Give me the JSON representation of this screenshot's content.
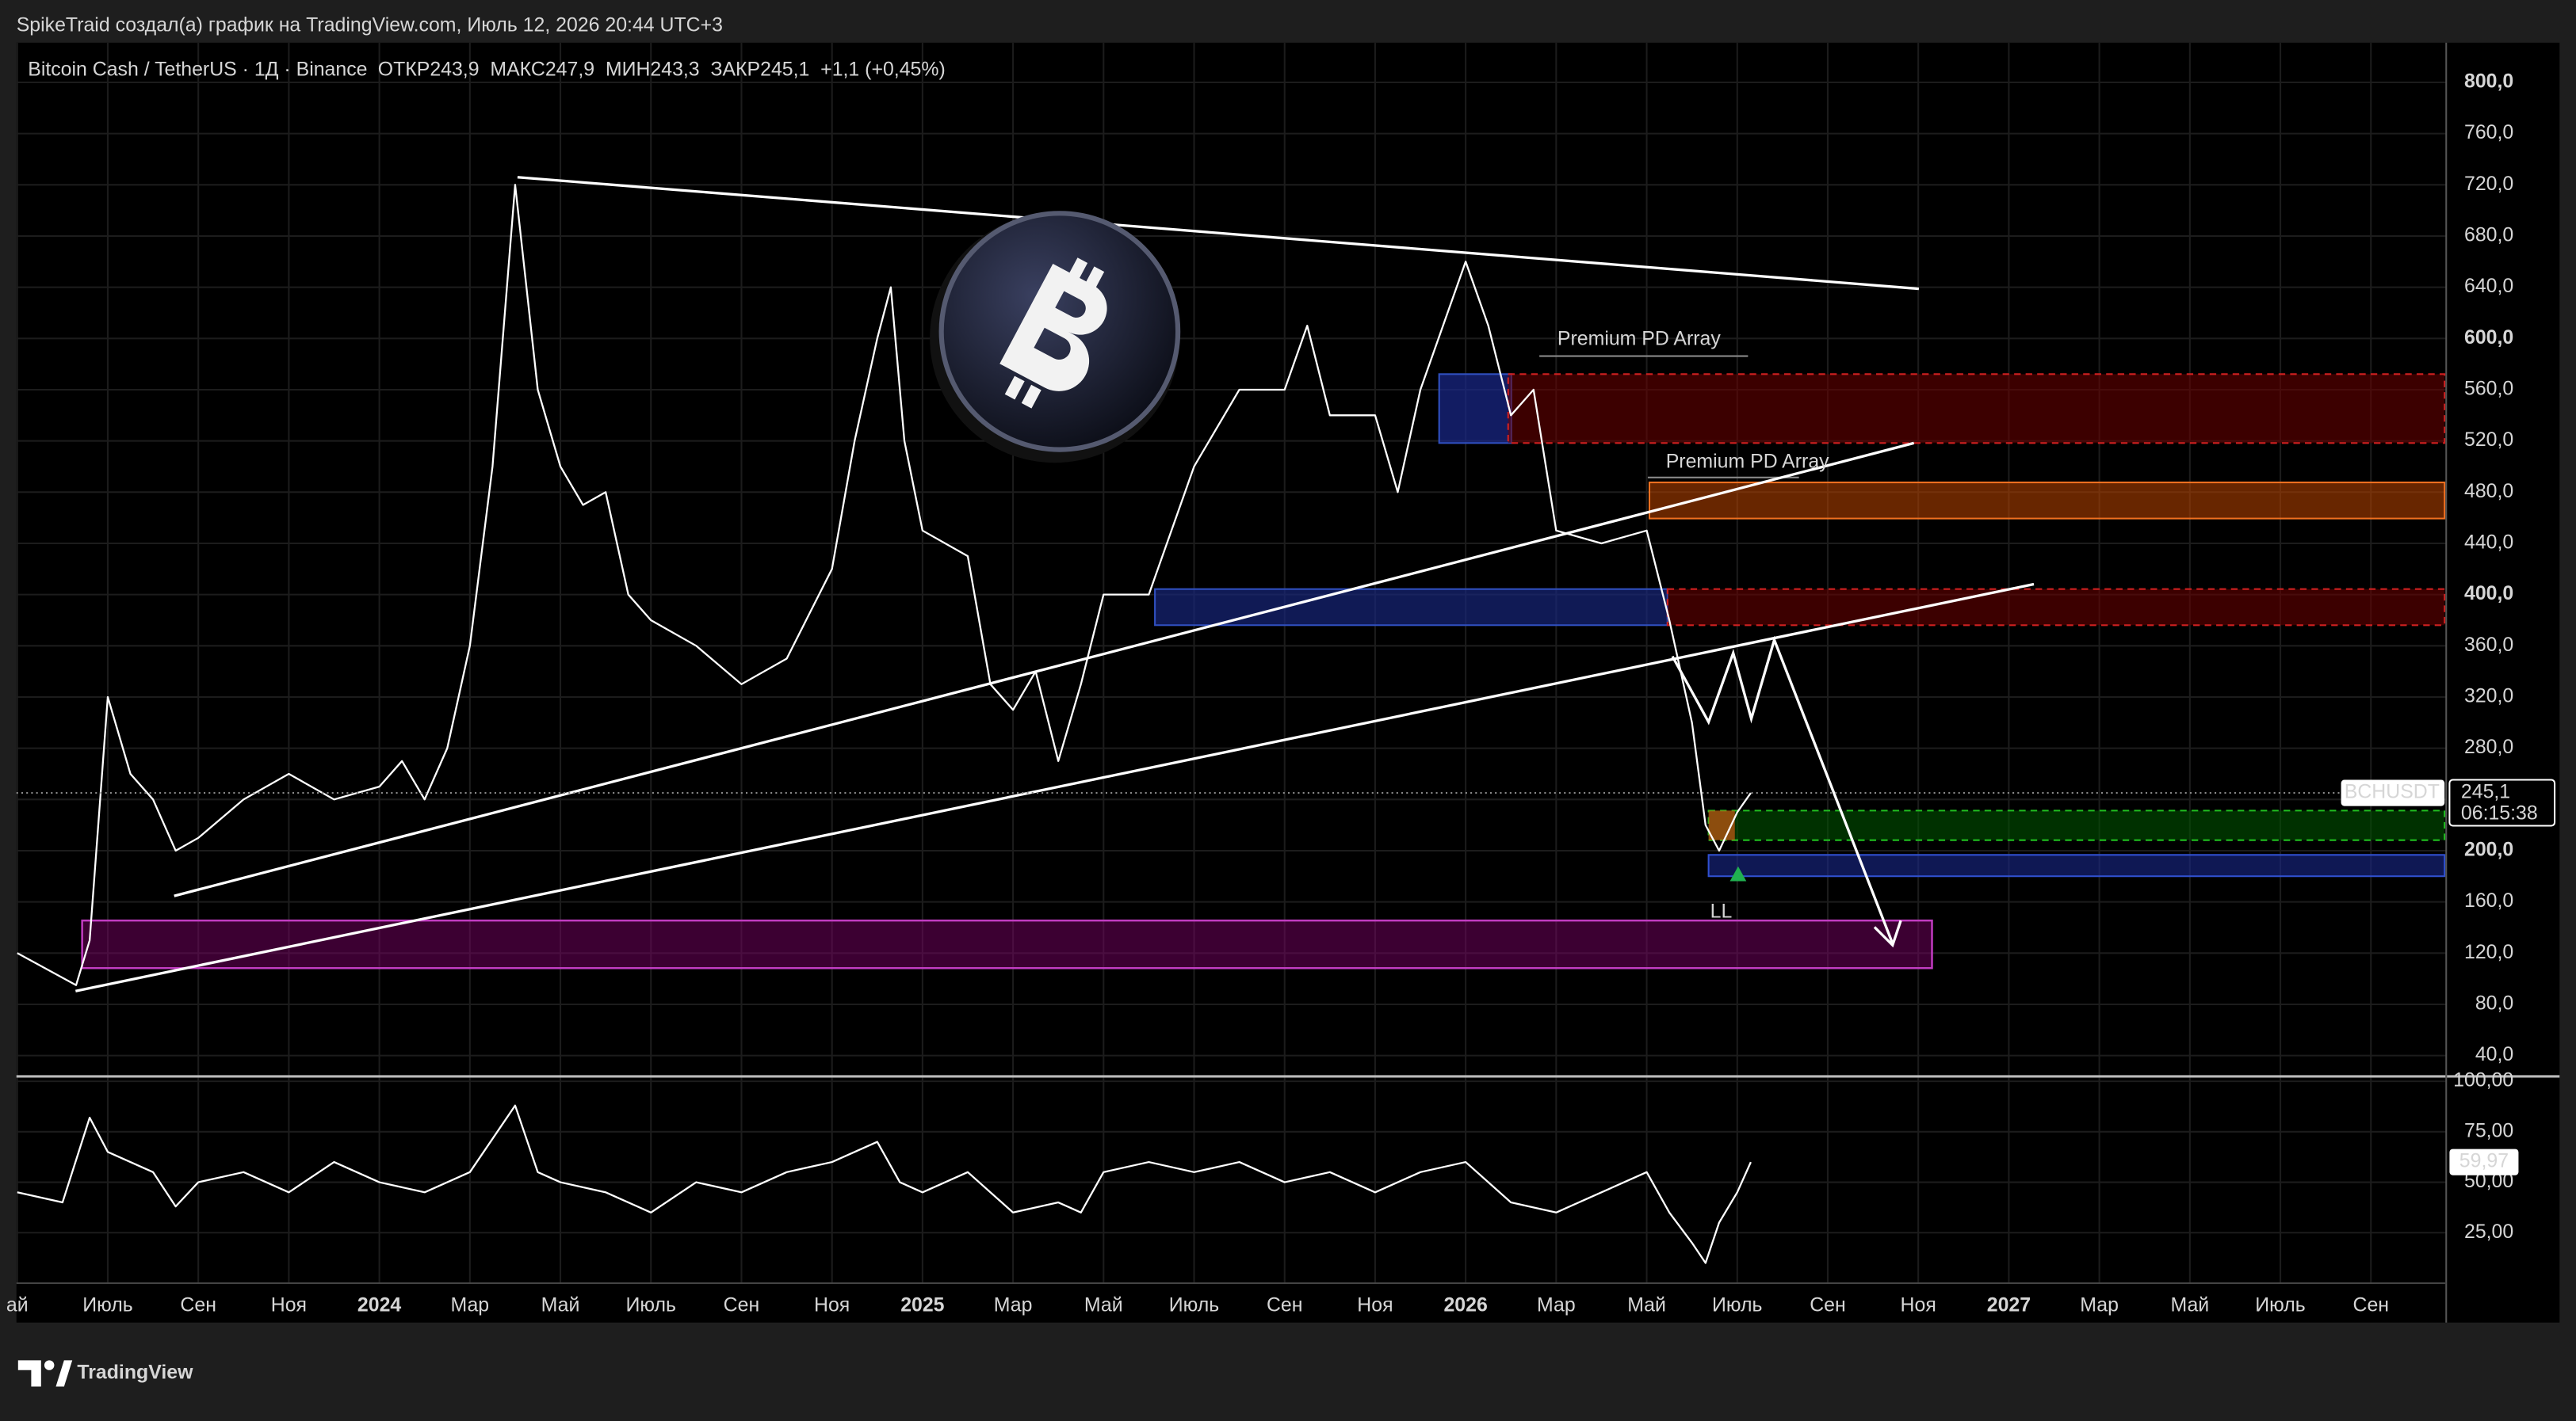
{
  "attribution": "SpikeTraid создал(а) график на TradingView.com, Июль 12, 2026 20:44 UTC+3",
  "brand": "TradingView",
  "chart_data": [
    {
      "type": "line",
      "title": "Bitcoin Cash / TetherUS · 1Д · Binance",
      "subtitle": "ОТКР243,9  МАКС247,9  МИН243,3  ЗАКР245,1  +1,1 (+0,45%)",
      "x": [
        0,
        1.3,
        1.6,
        2,
        2.5,
        3,
        3.5,
        4,
        5,
        6,
        7,
        8,
        8.5,
        9,
        9.5,
        10,
        10.5,
        11,
        11.5,
        12,
        12.5,
        13,
        13.5,
        14,
        15,
        16,
        17,
        18,
        18.5,
        19,
        19.3,
        19.6,
        20,
        21,
        21.5,
        22,
        22.5,
        23,
        23.5,
        24,
        25,
        26,
        27,
        28,
        28.5,
        29,
        30,
        30.5,
        31,
        32,
        32.5,
        33,
        33.5,
        34,
        35,
        36,
        36.5,
        37,
        37.3,
        37.6,
        38,
        38.3
      ],
      "series": [
        {
          "name": "BCHUSDT",
          "color": "#ffffff",
          "values": [
            120,
            95,
            130,
            320,
            260,
            240,
            200,
            210,
            240,
            260,
            240,
            250,
            270,
            240,
            280,
            360,
            500,
            720,
            560,
            500,
            470,
            480,
            400,
            380,
            360,
            330,
            350,
            420,
            520,
            600,
            640,
            520,
            450,
            430,
            330,
            310,
            340,
            270,
            330,
            400,
            400,
            500,
            560,
            560,
            610,
            540,
            540,
            480,
            560,
            660,
            610,
            540,
            560,
            450,
            440,
            450,
            380,
            300,
            220,
            200,
            230,
            245.1
          ],
          "value_labels": [
            null,
            null,
            null,
            null,
            null,
            null,
            null,
            null,
            null,
            null,
            null,
            null,
            null,
            null,
            null,
            null,
            null,
            null,
            null,
            null,
            null,
            null,
            null,
            null,
            null,
            null,
            null,
            null,
            null,
            null,
            null,
            null,
            null,
            null,
            null,
            null,
            null,
            null,
            null,
            null,
            null,
            null,
            null,
            null,
            null,
            null,
            null,
            null,
            null,
            null,
            null,
            null,
            null,
            null,
            null,
            null,
            null,
            null,
            null,
            null,
            null,
            "245,1"
          ]
        }
      ],
      "countdown": "06:15:38",
      "annotations": [
        "Premium PD Array",
        "Premium PD Array",
        "LL"
      ],
      "xlim": [
        0,
        53.7
      ],
      "xticks": [
        {
          "value": 0,
          "label": "ай"
        },
        {
          "value": 2,
          "label": "Июль"
        },
        {
          "value": 4,
          "label": "Сен"
        },
        {
          "value": 6,
          "label": "Ноя"
        },
        {
          "value": 8,
          "label": "2024"
        },
        {
          "value": 10,
          "label": "Мар"
        },
        {
          "value": 12,
          "label": "Май"
        },
        {
          "value": 14,
          "label": "Июль"
        },
        {
          "value": 16,
          "label": "Сен"
        },
        {
          "value": 18,
          "label": "Ноя"
        },
        {
          "value": 20,
          "label": "2025"
        },
        {
          "value": 22,
          "label": "Мар"
        },
        {
          "value": 24,
          "label": "Май"
        },
        {
          "value": 26,
          "label": "Июль"
        },
        {
          "value": 28,
          "label": "Сен"
        },
        {
          "value": 30,
          "label": "Ноя"
        },
        {
          "value": 32,
          "label": "2026"
        },
        {
          "value": 34,
          "label": "Мар"
        },
        {
          "value": 36,
          "label": "Май"
        },
        {
          "value": 38,
          "label": "Июль"
        },
        {
          "value": 40,
          "label": "Сен"
        },
        {
          "value": 42,
          "label": "Ноя"
        },
        {
          "value": 44,
          "label": "2027"
        },
        {
          "value": 46,
          "label": "Мар"
        },
        {
          "value": 48,
          "label": "Май"
        },
        {
          "value": 50,
          "label": "Июль"
        },
        {
          "value": 52,
          "label": "Сен"
        }
      ],
      "ylim": [
        25,
        831
      ],
      "yticks": [
        {
          "value": 40,
          "label": "40,0"
        },
        {
          "value": 80,
          "label": "80,0"
        },
        {
          "value": 120,
          "label": "120,0"
        },
        {
          "value": 160,
          "label": "160,0"
        },
        {
          "value": 200,
          "label": "200,0"
        },
        {
          "value": 240,
          "label": "240,0"
        },
        {
          "value": 280,
          "label": "280,0"
        },
        {
          "value": 320,
          "label": "320,0"
        },
        {
          "value": 360,
          "label": "360,0"
        },
        {
          "value": 400,
          "label": "400,0"
        },
        {
          "value": 440,
          "label": "440,0"
        },
        {
          "value": 480,
          "label": "480,0"
        },
        {
          "value": 520,
          "label": "520,0"
        },
        {
          "value": 560,
          "label": "560,0"
        },
        {
          "value": 600,
          "label": "600,0"
        },
        {
          "value": 640,
          "label": "640,0"
        },
        {
          "value": 680,
          "label": "680,0"
        },
        {
          "value": 720,
          "label": "720,0"
        },
        {
          "value": 760,
          "label": "760,0"
        },
        {
          "value": 800,
          "label": "800,0"
        }
      ],
      "grid": true
    },
    {
      "type": "line",
      "x": [
        0,
        1,
        1.6,
        2,
        3,
        3.5,
        4,
        5,
        6,
        7,
        8,
        9,
        10,
        11,
        11.5,
        12,
        13,
        14,
        15,
        16,
        17,
        18,
        19,
        19.5,
        20,
        21,
        22,
        23,
        23.5,
        24,
        25,
        26,
        27,
        28,
        29,
        30,
        31,
        32,
        33,
        34,
        35,
        36,
        36.5,
        37,
        37.3,
        37.6,
        38,
        38.3
      ],
      "series": [
        {
          "color": "#ffffff",
          "values": [
            45,
            40,
            82,
            65,
            55,
            38,
            50,
            55,
            45,
            60,
            50,
            45,
            55,
            88,
            55,
            50,
            45,
            35,
            50,
            45,
            55,
            60,
            70,
            50,
            45,
            55,
            35,
            40,
            35,
            55,
            60,
            55,
            60,
            50,
            55,
            45,
            55,
            60,
            40,
            35,
            45,
            55,
            35,
            20,
            10,
            30,
            45,
            59.97
          ],
          "value_labels": [
            null,
            null,
            null,
            null,
            null,
            null,
            null,
            null,
            null,
            null,
            null,
            null,
            null,
            null,
            null,
            null,
            null,
            null,
            null,
            null,
            null,
            null,
            null,
            null,
            null,
            null,
            null,
            null,
            null,
            null,
            null,
            null,
            null,
            null,
            null,
            null,
            null,
            null,
            null,
            null,
            null,
            null,
            null,
            null,
            null,
            null,
            null,
            "59,97"
          ]
        }
      ],
      "ylim": [
        0,
        101.6
      ],
      "yticks": [
        {
          "value": 25,
          "label": "25,00"
        },
        {
          "value": 50,
          "label": "50,00"
        },
        {
          "value": 75,
          "label": "75,00"
        },
        {
          "value": 100,
          "label": "100,00"
        }
      ],
      "grid": true
    }
  ]
}
